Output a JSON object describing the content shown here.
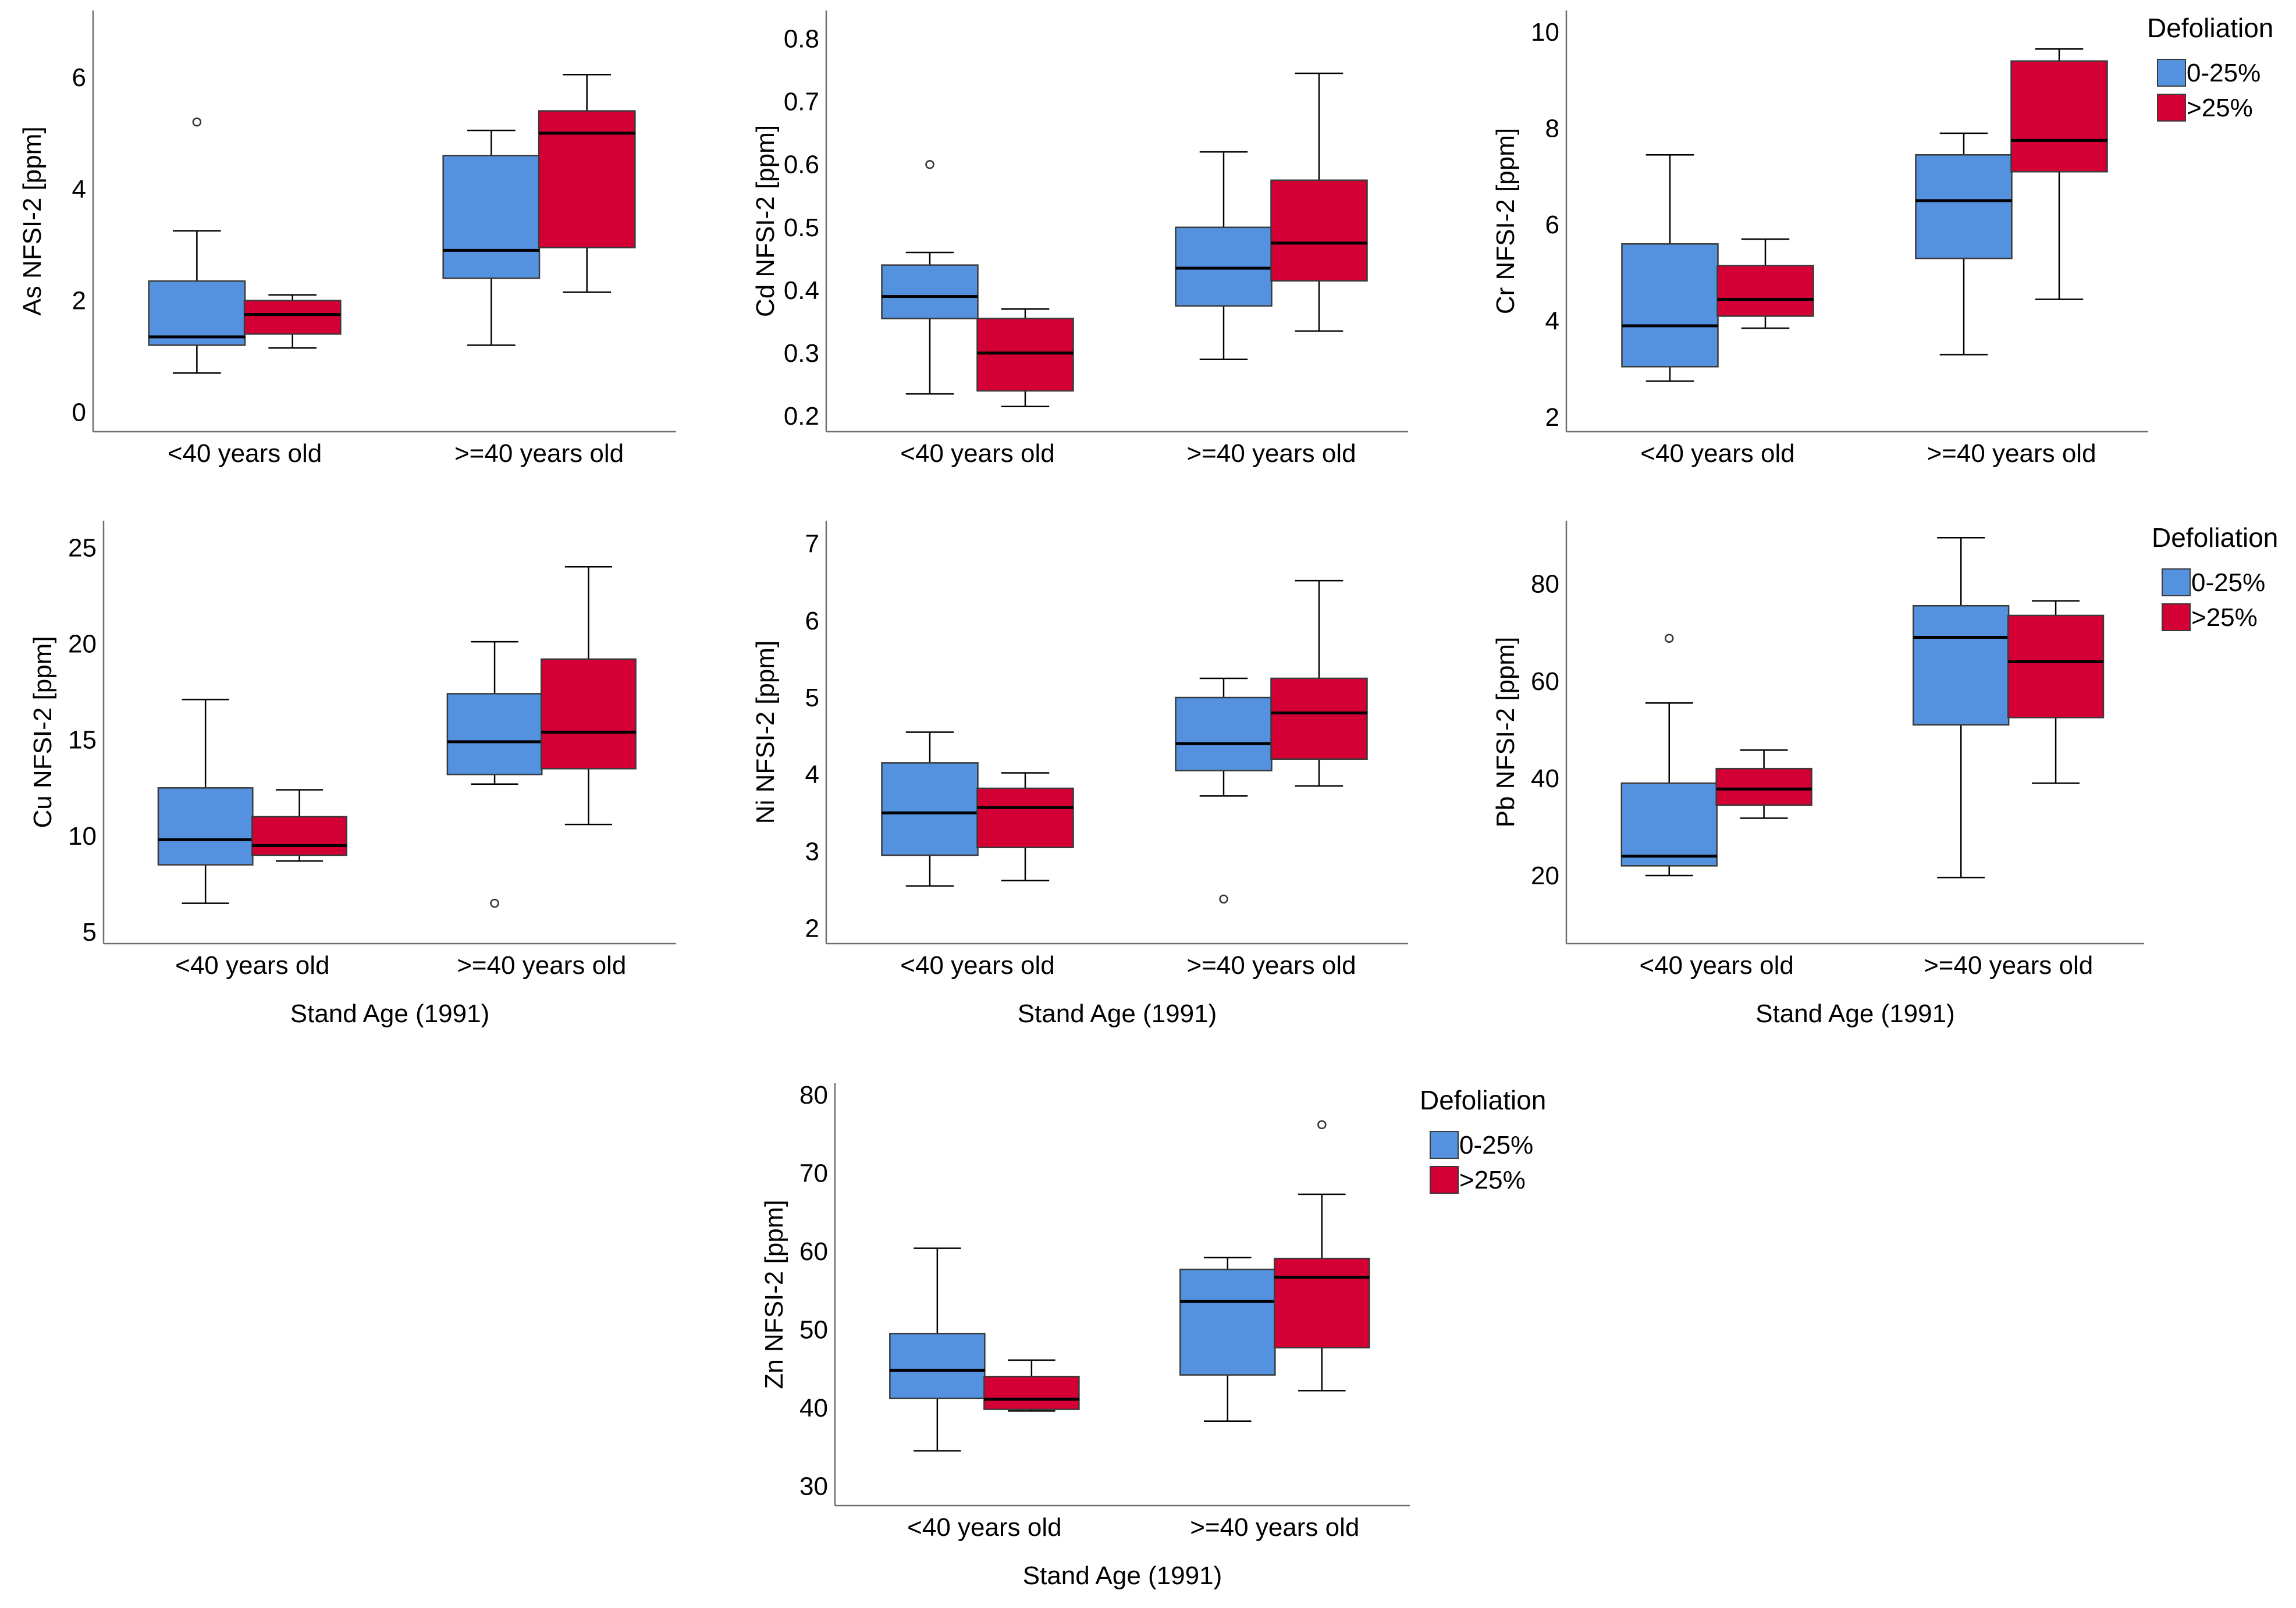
{
  "legend": {
    "title": "Defoliation",
    "items": [
      {
        "label": "0-25%",
        "color": "#5492e0"
      },
      {
        "label": ">25%",
        "color": "#d40035"
      }
    ]
  },
  "chart_data": [
    {
      "type": "box",
      "ylabel": "As NFSI-2 [ppm]",
      "xlabel": "",
      "categories": [
        "<40 years old",
        ">=40 years old"
      ],
      "yticks": [
        0,
        2,
        4,
        6
      ],
      "ylim": [
        -0.35,
        7.2
      ],
      "legend": false,
      "boxes": [
        {
          "category": "<40 years old",
          "series": "0-25%",
          "min": 0.7,
          "q1": 1.2,
          "median": 1.35,
          "q3": 2.35,
          "max": 3.25,
          "outliers": [
            5.2
          ]
        },
        {
          "category": "<40 years old",
          "series": ">25%",
          "min": 1.15,
          "q1": 1.4,
          "median": 1.75,
          "q3": 2.0,
          "max": 2.1,
          "outliers": []
        },
        {
          "category": ">=40 years old",
          "series": "0-25%",
          "min": 1.2,
          "q1": 2.4,
          "median": 2.9,
          "q3": 4.6,
          "max": 5.05,
          "outliers": []
        },
        {
          "category": ">=40 years old",
          "series": ">25%",
          "min": 2.15,
          "q1": 2.95,
          "median": 5.0,
          "q3": 5.4,
          "max": 6.05,
          "outliers": []
        }
      ]
    },
    {
      "type": "box",
      "ylabel": "Cd NFSI-2 [ppm]",
      "xlabel": "",
      "categories": [
        "<40 years old",
        ">=40 years old"
      ],
      "yticks": [
        0.2,
        0.3,
        0.4,
        0.5,
        0.6,
        0.7,
        0.8
      ],
      "ylim": [
        0.175,
        0.845
      ],
      "legend": false,
      "boxes": [
        {
          "category": "<40 years old",
          "series": "0-25%",
          "min": 0.235,
          "q1": 0.355,
          "median": 0.39,
          "q3": 0.44,
          "max": 0.46,
          "outliers": [
            0.6
          ]
        },
        {
          "category": "<40 years old",
          "series": ">25%",
          "min": 0.215,
          "q1": 0.24,
          "median": 0.3,
          "q3": 0.355,
          "max": 0.37,
          "outliers": []
        },
        {
          "category": ">=40 years old",
          "series": "0-25%",
          "min": 0.29,
          "q1": 0.375,
          "median": 0.435,
          "q3": 0.5,
          "max": 0.62,
          "outliers": []
        },
        {
          "category": ">=40 years old",
          "series": ">25%",
          "min": 0.335,
          "q1": 0.415,
          "median": 0.475,
          "q3": 0.575,
          "max": 0.745,
          "outliers": []
        }
      ]
    },
    {
      "type": "box",
      "ylabel": "Cr NFSI-2 [ppm]",
      "xlabel": "",
      "categories": [
        "<40 years old",
        ">=40 years old"
      ],
      "yticks": [
        2,
        4,
        6,
        8,
        10
      ],
      "ylim": [
        1.7,
        10.45
      ],
      "legend": true,
      "boxes": [
        {
          "category": "<40 years old",
          "series": "0-25%",
          "min": 2.75,
          "q1": 3.05,
          "median": 3.9,
          "q3": 5.6,
          "max": 7.45,
          "outliers": []
        },
        {
          "category": "<40 years old",
          "series": ">25%",
          "min": 3.85,
          "q1": 4.1,
          "median": 4.45,
          "q3": 5.15,
          "max": 5.7,
          "outliers": []
        },
        {
          "category": ">=40 years old",
          "series": "0-25%",
          "min": 3.3,
          "q1": 5.3,
          "median": 6.5,
          "q3": 7.45,
          "max": 7.9,
          "outliers": []
        },
        {
          "category": ">=40 years old",
          "series": ">25%",
          "min": 4.45,
          "q1": 7.1,
          "median": 7.75,
          "q3": 9.4,
          "max": 9.65,
          "outliers": []
        }
      ]
    },
    {
      "type": "box",
      "ylabel": "Cu NFSI-2 [ppm]",
      "xlabel": "Stand Age (1991)",
      "categories": [
        "<40 years old",
        ">=40 years old"
      ],
      "yticks": [
        5,
        10,
        15,
        20,
        25
      ],
      "ylim": [
        4.4,
        26.4
      ],
      "legend": false,
      "boxes": [
        {
          "category": "<40 years old",
          "series": "0-25%",
          "min": 6.5,
          "q1": 8.5,
          "median": 9.8,
          "q3": 12.5,
          "max": 17.1,
          "outliers": []
        },
        {
          "category": "<40 years old",
          "series": ">25%",
          "min": 8.7,
          "q1": 9.0,
          "median": 9.5,
          "q3": 11.0,
          "max": 12.4,
          "outliers": []
        },
        {
          "category": ">=40 years old",
          "series": "0-25%",
          "min": 12.7,
          "q1": 13.2,
          "median": 14.9,
          "q3": 17.4,
          "max": 20.1,
          "outliers": [
            6.5
          ]
        },
        {
          "category": ">=40 years old",
          "series": ">25%",
          "min": 10.6,
          "q1": 13.5,
          "median": 15.4,
          "q3": 19.2,
          "max": 24.0,
          "outliers": []
        }
      ]
    },
    {
      "type": "box",
      "ylabel": "Ni NFSI-2 [ppm]",
      "xlabel": "Stand Age (1991)",
      "categories": [
        "<40 years old",
        ">=40 years old"
      ],
      "yticks": [
        2,
        3,
        4,
        5,
        6,
        7
      ],
      "ylim": [
        1.8,
        7.3
      ],
      "legend": false,
      "boxes": [
        {
          "category": "<40 years old",
          "series": "0-25%",
          "min": 2.55,
          "q1": 2.95,
          "median": 3.5,
          "q3": 4.15,
          "max": 4.55,
          "outliers": []
        },
        {
          "category": "<40 years old",
          "series": ">25%",
          "min": 2.62,
          "q1": 3.05,
          "median": 3.57,
          "q3": 3.82,
          "max": 4.02,
          "outliers": []
        },
        {
          "category": ">=40 years old",
          "series": "0-25%",
          "min": 3.72,
          "q1": 4.05,
          "median": 4.4,
          "q3": 5.0,
          "max": 5.25,
          "outliers": [
            2.38
          ]
        },
        {
          "category": ">=40 years old",
          "series": ">25%",
          "min": 3.85,
          "q1": 4.2,
          "median": 4.8,
          "q3": 5.25,
          "max": 6.52,
          "outliers": []
        }
      ]
    },
    {
      "type": "box",
      "ylabel": "Pb NFSI-2 [ppm]",
      "xlabel": "Stand Age (1991)",
      "categories": [
        "<40 years old",
        ">=40 years old"
      ],
      "yticks": [
        20,
        40,
        60,
        80
      ],
      "ylim": [
        6,
        93
      ],
      "legend": true,
      "boxes": [
        {
          "category": "<40 years old",
          "series": "0-25%",
          "min": 20.0,
          "q1": 22.0,
          "median": 24.0,
          "q3": 39.0,
          "max": 55.5,
          "outliers": [
            68.8
          ]
        },
        {
          "category": "<40 years old",
          "series": ">25%",
          "min": 31.8,
          "q1": 34.5,
          "median": 37.8,
          "q3": 42.0,
          "max": 45.8,
          "outliers": []
        },
        {
          "category": ">=40 years old",
          "series": "0-25%",
          "min": 19.6,
          "q1": 51.0,
          "median": 69.0,
          "q3": 75.5,
          "max": 89.5,
          "outliers": []
        },
        {
          "category": ">=40 years old",
          "series": ">25%",
          "min": 39.0,
          "q1": 52.5,
          "median": 64.0,
          "q3": 73.5,
          "max": 76.5,
          "outliers": []
        }
      ]
    },
    {
      "type": "box",
      "ylabel": "Zn NFSI-2 [ppm]",
      "xlabel": "Stand Age (1991)",
      "categories": [
        "<40 years old",
        ">=40 years old"
      ],
      "yticks": [
        30,
        40,
        50,
        60,
        70,
        80
      ],
      "ylim": [
        27.5,
        81.5
      ],
      "legend": true,
      "boxes": [
        {
          "category": "<40 years old",
          "series": "0-25%",
          "min": 34.5,
          "q1": 41.2,
          "median": 44.8,
          "q3": 49.5,
          "max": 60.4,
          "outliers": []
        },
        {
          "category": "<40 years old",
          "series": ">25%",
          "min": 39.6,
          "q1": 39.8,
          "median": 41.1,
          "q3": 44.0,
          "max": 46.1,
          "outliers": []
        },
        {
          "category": ">=40 years old",
          "series": "0-25%",
          "min": 38.3,
          "q1": 44.2,
          "median": 53.6,
          "q3": 57.7,
          "max": 59.2,
          "outliers": []
        },
        {
          "category": ">=40 years old",
          "series": ">25%",
          "min": 42.2,
          "q1": 47.7,
          "median": 56.7,
          "q3": 59.1,
          "max": 67.3,
          "outliers": [
            76.2
          ]
        }
      ]
    }
  ]
}
